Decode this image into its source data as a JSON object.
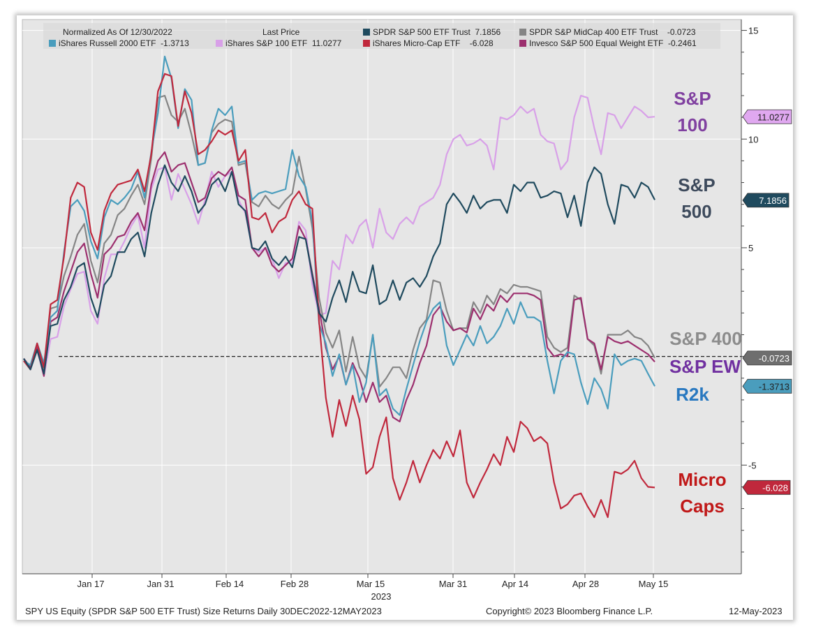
{
  "chart_data": {
    "type": "line",
    "title": "SPY US Equity (SPDR S&P 500 ETF Trust) Size Returns",
    "legend_header": {
      "normalized": "Normalized As Of 12/30/2022",
      "last_price": "Last Price"
    },
    "footer": {
      "left": "SPY US Equity (SPDR S&P 500 ETF Trust) Size Returns  Daily 30DEC2022-12MAY2023",
      "copyright": "Copyright© 2023 Bloomberg Finance L.P.",
      "date": "12-May-2023"
    },
    "x_labels": [
      "Jan 17",
      "Jan 31",
      "Feb 14",
      "Feb 28",
      "Mar 15",
      "Mar 31",
      "Apr 14",
      "Apr 28",
      "May 15"
    ],
    "x_year": "2023",
    "y_ticks": [
      "15",
      "10",
      "5",
      "-5"
    ],
    "ylim": [
      -10,
      15.5
    ],
    "baseline": 0,
    "series": [
      {
        "name": "SPDR S&P 500 ETF Trust",
        "legend": "SPDR S&P 500 ETF Trust  7.1856",
        "color": "#1f4a5e",
        "last_label": "7.1856",
        "annotation": [
          "S&P",
          "500"
        ],
        "annotation_color": "#3d4a5c",
        "values": [
          -0.1,
          -0.6,
          0.3,
          -0.8,
          1.4,
          1.5,
          2.6,
          3.2,
          4.1,
          4.3,
          2.7,
          1.8,
          3.3,
          3.7,
          4.8,
          4.8,
          5.4,
          5.7,
          4.6,
          6.6,
          7.9,
          8.8,
          8.0,
          7.6,
          8.3,
          7.6,
          6.6,
          7.0,
          7.9,
          8.2,
          7.6,
          8.5,
          7.0,
          6.7,
          5.0,
          4.9,
          5.3,
          4.5,
          4.2,
          4.6,
          4.1,
          5.5,
          5.4,
          3.7,
          2.0,
          1.6,
          2.7,
          3.5,
          2.5,
          3.9,
          3.0,
          2.9,
          4.2,
          2.4,
          2.6,
          3.5,
          2.6,
          3.4,
          3.6,
          3.2,
          3.7,
          4.6,
          5.2,
          7.0,
          7.5,
          7.1,
          6.6,
          7.4,
          6.8,
          7.1,
          7.2,
          7.2,
          6.6,
          7.9,
          7.6,
          8.0,
          8.0,
          7.3,
          7.4,
          7.6,
          7.5,
          6.4,
          7.4,
          6.0,
          8.0,
          8.7,
          8.4,
          7.0,
          6.1,
          7.9,
          7.8,
          7.3,
          8.0,
          7.8,
          7.2
        ]
      },
      {
        "name": "SPDR S&P MidCap 400 ETF Trust",
        "legend": "SPDR S&P MidCap 400 ETF Trust    -0.0723",
        "color": "#858585",
        "last_label": "-0.0723",
        "annotation": [
          "S&P 400"
        ],
        "annotation_color": "#8c8c8c",
        "values": [
          -0.2,
          -0.4,
          0.6,
          -0.6,
          2.2,
          2.3,
          3.7,
          4.6,
          5.6,
          6.1,
          4.4,
          3.4,
          5.2,
          5.6,
          6.5,
          6.8,
          7.4,
          7.9,
          7.0,
          9.1,
          11.9,
          12.0,
          11.1,
          10.8,
          11.4,
          10.2,
          8.8,
          8.9,
          10.3,
          10.7,
          10.9,
          10.8,
          8.8,
          8.9,
          7.1,
          6.9,
          7.4,
          7.0,
          6.8,
          7.2,
          7.5,
          9.2,
          7.7,
          5.9,
          2.7,
          1.1,
          0.4,
          1.2,
          -0.7,
          0.9,
          -0.5,
          -1.0,
          1.0,
          -1.4,
          -1.0,
          -0.5,
          -0.5,
          -1.0,
          0.3,
          1.3,
          1.7,
          3.5,
          3.4,
          2.1,
          1.2,
          1.3,
          1.3,
          2.5,
          2.0,
          2.8,
          2.4,
          3.1,
          2.9,
          3.3,
          3.2,
          3.2,
          3.1,
          3.0,
          0.9,
          0.4,
          0.2,
          0.4,
          2.8,
          2.6,
          0.8,
          0.5,
          -0.8,
          1.0,
          1.0,
          1.0,
          1.2,
          0.9,
          0.8,
          0.5,
          -0.07
        ]
      },
      {
        "name": "iShares Russell 2000 ETF",
        "legend": "iShares Russell 2000 ETF  -1.3713",
        "color": "#4a9dbd",
        "last_label": "-1.3713",
        "annotation": [
          "R2k"
        ],
        "annotation_color": "#2878c0",
        "values": [
          -0.2,
          -0.4,
          0.6,
          -0.3,
          1.8,
          2.1,
          4.8,
          6.9,
          7.2,
          6.7,
          5.3,
          4.5,
          6.4,
          7.2,
          7.0,
          7.3,
          7.7,
          8.5,
          7.3,
          9.4,
          11.2,
          13.8,
          12.8,
          10.5,
          12.3,
          11.8,
          8.8,
          8.9,
          10.4,
          11.4,
          11.1,
          11.5,
          8.9,
          9.0,
          7.2,
          7.5,
          7.6,
          7.5,
          7.6,
          7.7,
          9.5,
          8.3,
          7.8,
          6.2,
          1.5,
          0.6,
          -0.9,
          0.1,
          -1.3,
          -0.4,
          -2.1,
          -1.2,
          1.0,
          -1.8,
          -1.5,
          -2.4,
          -2.7,
          -1.5,
          -0.4,
          0.7,
          1.6,
          2.2,
          2.5,
          0.5,
          -0.4,
          0.3,
          1.0,
          0.5,
          1.4,
          0.6,
          0.9,
          1.4,
          2.2,
          1.5,
          2.5,
          1.8,
          1.8,
          1.6,
          -0.2,
          -1.7,
          -0.2,
          0.2,
          0.1,
          -1.2,
          -2.2,
          -1.0,
          -1.5,
          -2.4,
          0.1,
          -0.4,
          -0.2,
          -0.1,
          -0.2,
          -0.8,
          -1.37
        ]
      },
      {
        "name": "iShares S&P 100 ETF",
        "legend": "iShares S&P 100 ETF  11.0277",
        "color": "#d8a0e8",
        "last_label": "11.0277",
        "annotation": [
          "S&P",
          "100"
        ],
        "annotation_color": "#8040a0",
        "values": [
          -0.1,
          -0.6,
          0.3,
          -0.9,
          0.8,
          0.9,
          2.3,
          3.1,
          3.8,
          3.9,
          2.1,
          1.5,
          3.6,
          4.7,
          4.7,
          5.3,
          6.0,
          6.5,
          5.0,
          7.7,
          8.6,
          8.7,
          7.2,
          8.4,
          7.7,
          7.0,
          6.1,
          7.2,
          8.5,
          7.8,
          8.3,
          8.5,
          7.2,
          6.6,
          5.0,
          4.8,
          5.0,
          4.5,
          3.6,
          4.3,
          4.3,
          6.2,
          5.8,
          3.3,
          1.9,
          2.0,
          4.4,
          4.0,
          5.6,
          5.2,
          6.0,
          6.3,
          5.0,
          6.8,
          5.7,
          5.4,
          6.1,
          6.4,
          6.1,
          6.9,
          7.1,
          7.3,
          7.9,
          9.3,
          10.0,
          10.2,
          9.7,
          9.8,
          10.0,
          9.7,
          8.6,
          11.0,
          10.9,
          11.1,
          11.5,
          11.2,
          11.4,
          10.2,
          9.9,
          9.8,
          8.6,
          9.0,
          11.0,
          12.0,
          11.9,
          10.5,
          9.3,
          11.2,
          11.1,
          10.5,
          11.0,
          11.5,
          11.3,
          11.0,
          11.03
        ]
      },
      {
        "name": "iShares Micro-Cap ETF",
        "legend": "iShares Micro-Cap ETF    -6.028",
        "color": "#c0283c",
        "last_label": "-6.028",
        "annotation": [
          "Micro",
          "Caps"
        ],
        "annotation_color": "#c01818",
        "values": [
          -0.2,
          -0.6,
          0.6,
          -0.5,
          2.4,
          2.6,
          4.6,
          7.3,
          8.0,
          7.8,
          5.7,
          4.9,
          6.7,
          7.5,
          7.9,
          8.0,
          8.1,
          8.6,
          7.6,
          9.3,
          12.2,
          13.0,
          12.9,
          10.6,
          12.2,
          11.2,
          9.3,
          9.5,
          9.9,
          10.4,
          10.2,
          10.4,
          9.0,
          9.5,
          6.4,
          6.3,
          6.6,
          5.7,
          6.2,
          6.4,
          7.2,
          7.6,
          7.0,
          6.8,
          1.6,
          -1.9,
          -3.7,
          -2.0,
          -3.2,
          -1.8,
          -2.9,
          -5.4,
          -5.1,
          -3.7,
          -2.8,
          -5.6,
          -6.6,
          -5.8,
          -4.8,
          -5.8,
          -5.0,
          -4.3,
          -4.7,
          -3.9,
          -4.6,
          -3.4,
          -5.8,
          -6.5,
          -5.8,
          -5.2,
          -4.5,
          -5.0,
          -3.7,
          -4.4,
          -3.0,
          -3.3,
          -3.9,
          -3.7,
          -4.0,
          -5.8,
          -7.0,
          -6.8,
          -6.4,
          -6.3,
          -6.9,
          -7.4,
          -6.6,
          -7.4,
          -5.3,
          -5.4,
          -5.2,
          -4.8,
          -5.6,
          -6.0,
          -6.03
        ]
      },
      {
        "name": "Invesco S&P 500 Equal Weight ETF",
        "legend": "Invesco S&P 500 Equal Weight ETF  -0.2461",
        "color": "#9c2f6e",
        "last_label": "-0.2461",
        "annotation": [
          "S&P EW"
        ],
        "annotation_color": "#7030a0",
        "values": [
          -0.1,
          -0.5,
          0.4,
          -0.9,
          1.6,
          1.8,
          3.0,
          3.9,
          4.8,
          5.2,
          3.8,
          2.7,
          4.7,
          5.0,
          5.5,
          5.6,
          6.2,
          6.6,
          5.8,
          7.9,
          9.0,
          9.4,
          8.5,
          8.8,
          8.9,
          8.0,
          7.1,
          7.3,
          8.2,
          8.5,
          8.3,
          8.7,
          7.4,
          7.2,
          5.0,
          4.6,
          5.0,
          4.2,
          3.9,
          4.2,
          4.5,
          6.0,
          5.4,
          3.8,
          2.2,
          0.4,
          -0.6,
          0.0,
          -1.3,
          -0.3,
          -1.0,
          -2.1,
          -1.2,
          -2.1,
          -1.8,
          -2.8,
          -3.0,
          -2.0,
          -1.3,
          -0.3,
          0.5,
          1.9,
          2.3,
          1.6,
          1.2,
          1.3,
          1.1,
          2.2,
          1.7,
          2.4,
          2.1,
          2.8,
          2.5,
          2.9,
          2.9,
          2.9,
          2.8,
          2.6,
          0.4,
          0.0,
          0.1,
          0.0,
          2.6,
          2.7,
          0.8,
          0.6,
          -0.6,
          0.9,
          0.7,
          0.6,
          0.7,
          0.5,
          0.3,
          0.1,
          -0.25
        ]
      }
    ]
  }
}
